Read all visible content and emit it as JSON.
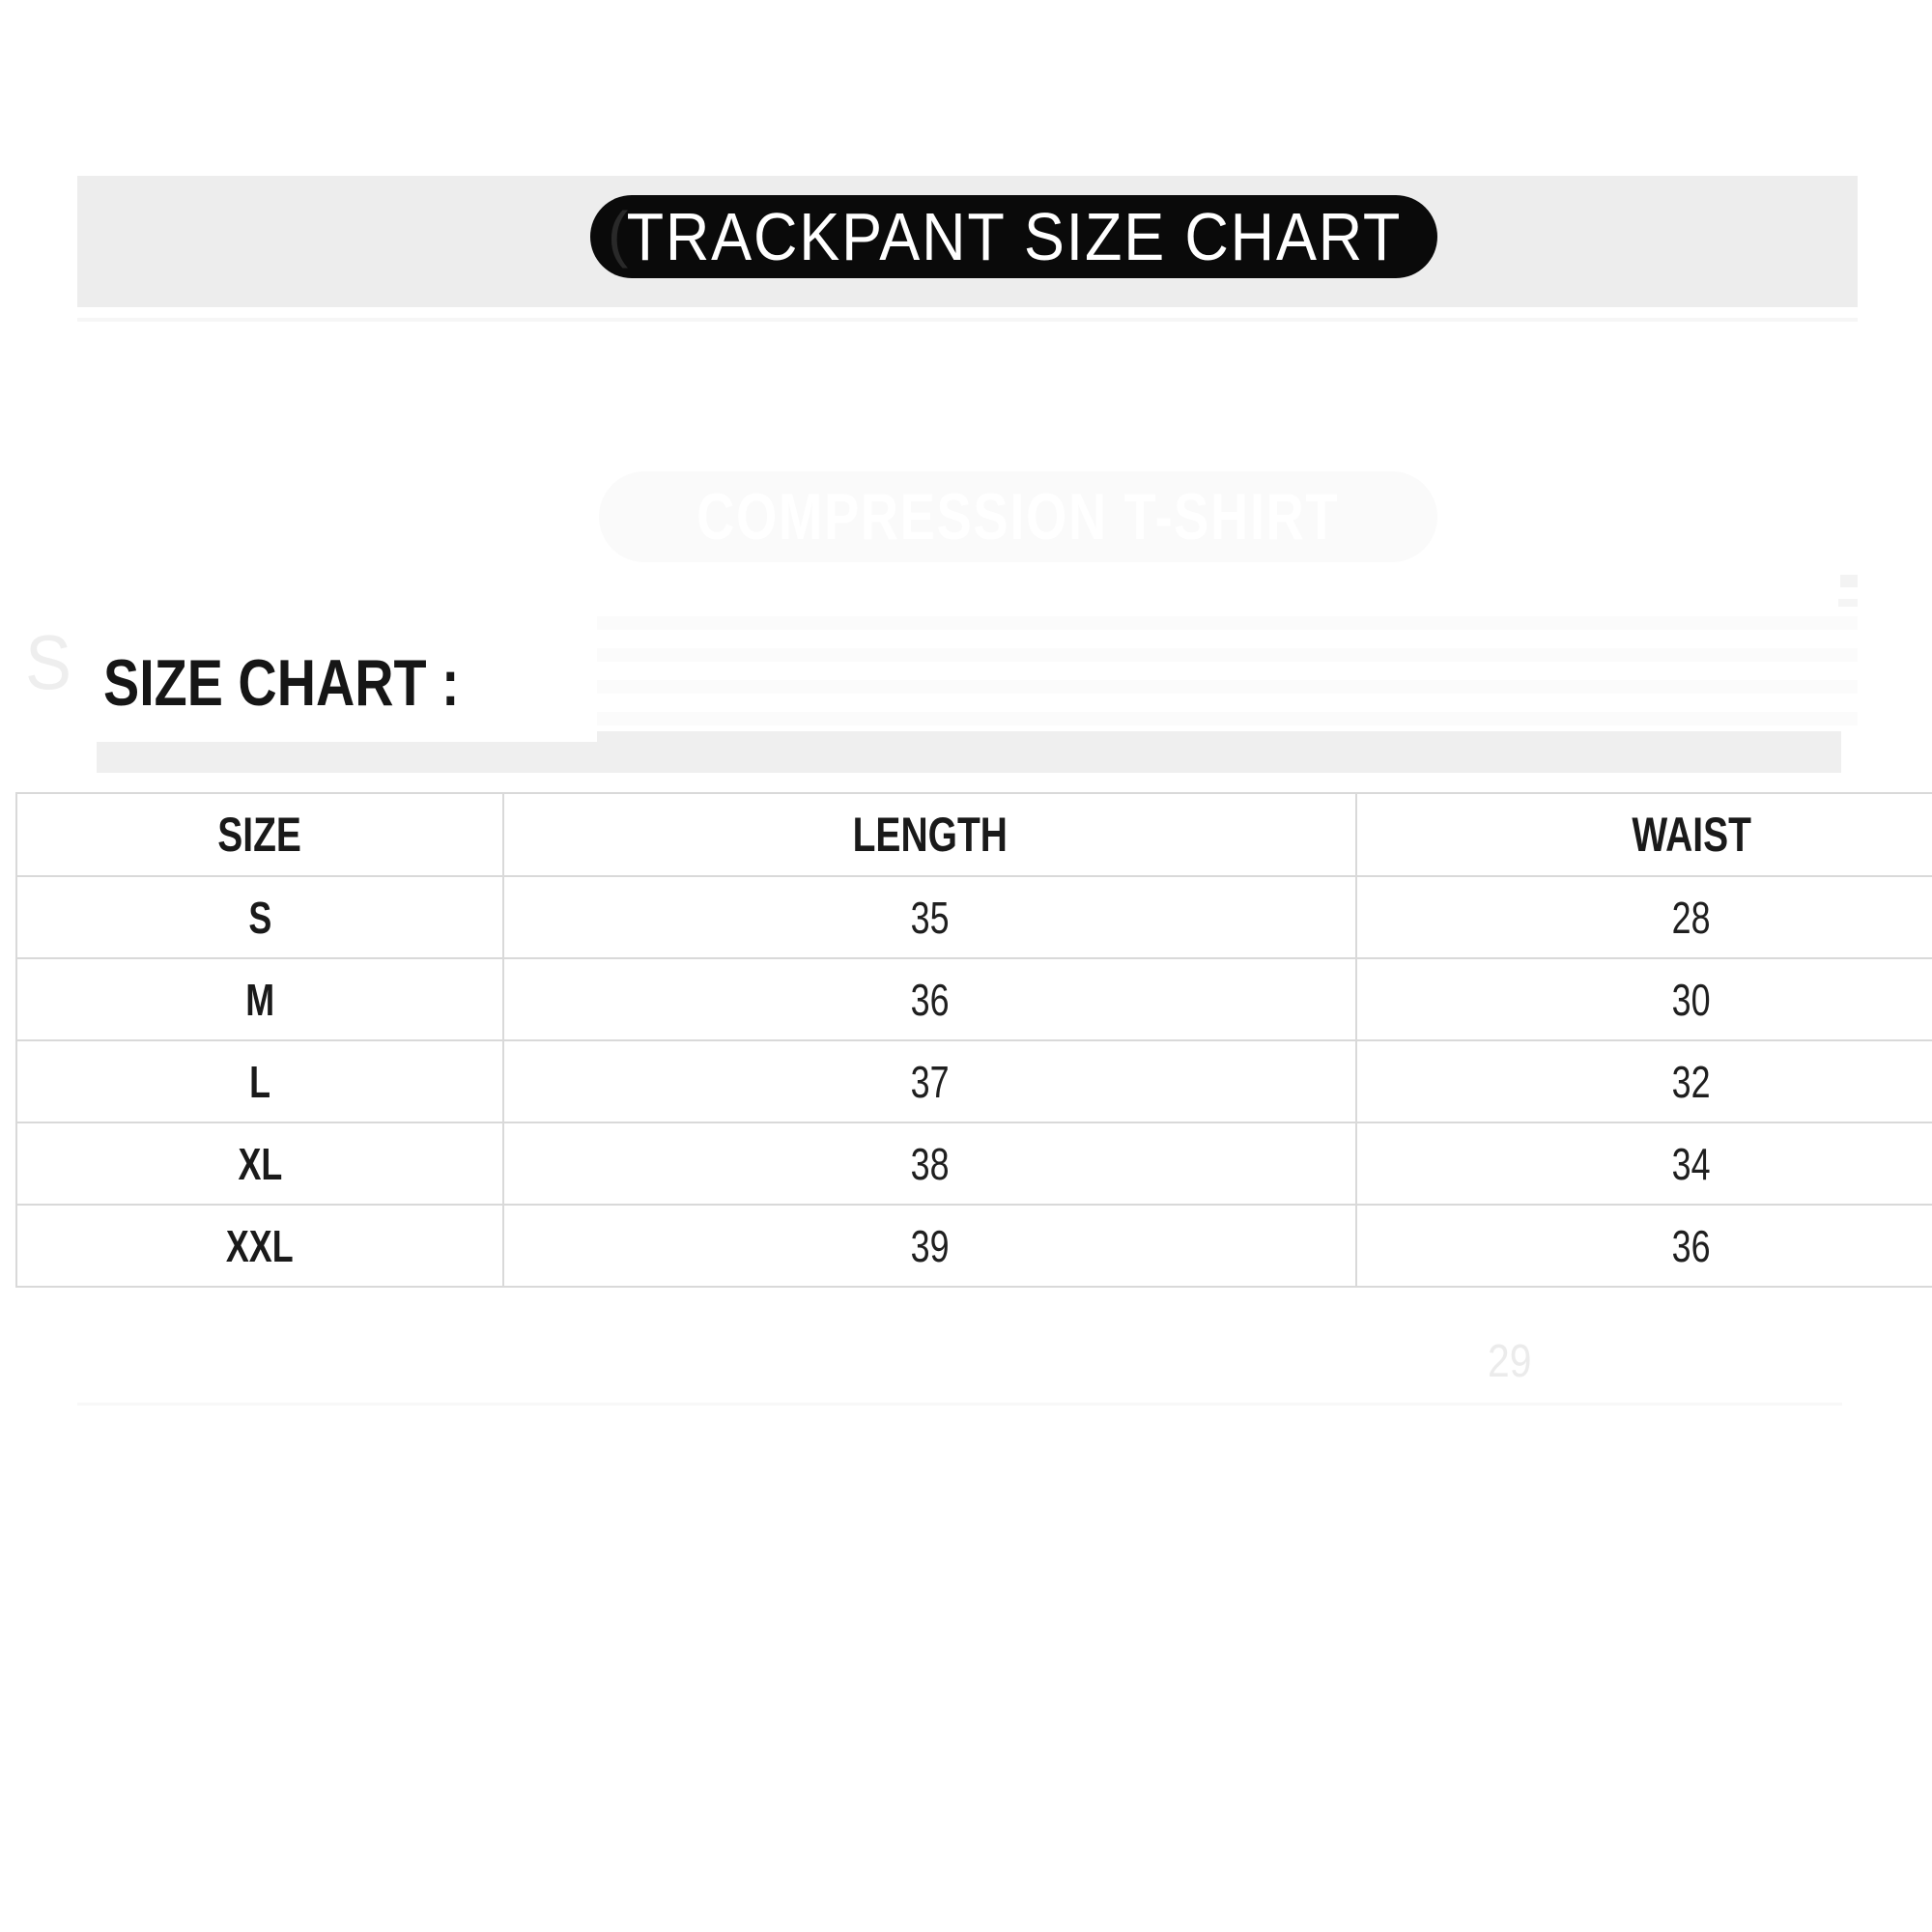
{
  "banner": {
    "label": "TRACKPANT SIZE CHART",
    "ghost_paren": "(",
    "band_color": "#ededed",
    "pill_color": "#0a0a0a",
    "pill_text_color": "#ffffff"
  },
  "section": {
    "heading": "SIZE CHART :"
  },
  "chart_data": {
    "type": "table",
    "title": "TRACKPANT SIZE CHART",
    "columns": [
      "SIZE",
      "LENGTH",
      "WAIST"
    ],
    "rows": [
      {
        "size": "S",
        "length": "35",
        "waist": "28"
      },
      {
        "size": "M",
        "length": "36",
        "waist": "30"
      },
      {
        "size": "L",
        "length": "37",
        "waist": "32"
      },
      {
        "size": "XL",
        "length": "38",
        "waist": "34"
      },
      {
        "size": "XXL",
        "length": "39",
        "waist": "36"
      }
    ]
  },
  "ghost_watermarks": {
    "banner_label": "COMPRESSION T-SHIRT",
    "heading_fragment": "S",
    "stray_number": "29"
  },
  "colors": {
    "table_border": "#d9d9d9",
    "heading_text": "#161616",
    "cell_text": "#1a1a1a",
    "ghost_gray": "#efefef"
  }
}
